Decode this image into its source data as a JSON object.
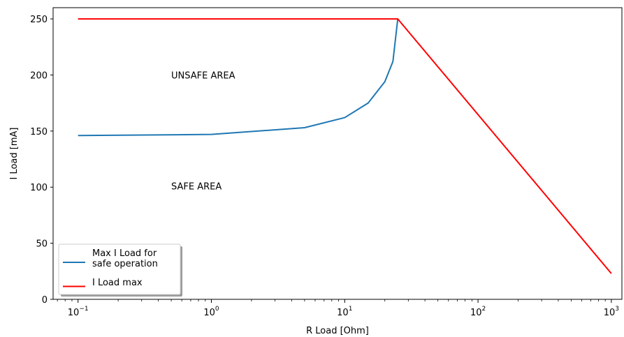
{
  "chart_data": {
    "type": "line",
    "xscale": "log",
    "xlabel": "R Load [Ohm]",
    "ylabel": "I Load [mA]",
    "xlim": [
      0.065,
      1200
    ],
    "ylim": [
      0,
      260
    ],
    "yticks": [
      0,
      50,
      100,
      150,
      200,
      250
    ],
    "xticks": [
      {
        "value": 0.1,
        "base": "10",
        "exp": "−1"
      },
      {
        "value": 1,
        "base": "10",
        "exp": "0"
      },
      {
        "value": 10,
        "base": "10",
        "exp": "1"
      },
      {
        "value": 100,
        "base": "10",
        "exp": "2"
      },
      {
        "value": 1000,
        "base": "10",
        "exp": "3"
      }
    ],
    "grid": false,
    "legend_position": "lower-left",
    "series": [
      {
        "name": "Max I Load for safe operation",
        "legend_lines": [
          "Max I Load for",
          "safe operation"
        ],
        "color": "#1f77b4",
        "x": [
          0.1,
          1,
          5,
          10,
          15,
          20,
          23,
          25
        ],
        "y": [
          146,
          147,
          153,
          162,
          175,
          194,
          212,
          250
        ]
      },
      {
        "name": "I Load max",
        "legend_lines": [
          "I Load max"
        ],
        "color": "#ff0000",
        "x": [
          0.1,
          25,
          1000
        ],
        "y": [
          250,
          250,
          23
        ]
      }
    ],
    "annotations": [
      {
        "text": "UNSAFE AREA",
        "x": 0.5,
        "y": 200
      },
      {
        "text": "SAFE AREA",
        "x": 0.5,
        "y": 101
      }
    ]
  }
}
